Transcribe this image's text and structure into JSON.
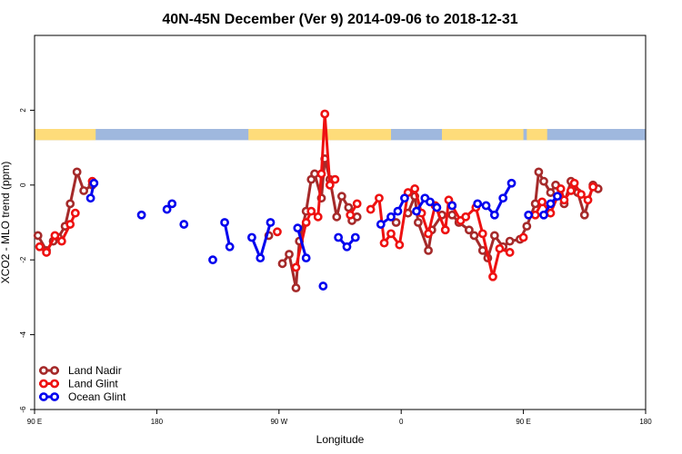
{
  "chart_data": {
    "type": "line",
    "title": "40N-45N December (Ver 9)   2014-09-06 to 2018-12-31",
    "xlabel": "Longitude",
    "ylabel": "XCO2 - MLO trend (ppm)",
    "xlim": [
      90,
      450
    ],
    "ylim": [
      -6,
      4
    ],
    "xticks": [
      {
        "value": 90,
        "label": "90 E"
      },
      {
        "value": 162,
        "label": "180"
      },
      {
        "value": 234,
        "label": "90 W"
      },
      {
        "value": 306,
        "label": "0"
      },
      {
        "value": 378,
        "label": "90 E"
      },
      {
        "value": 450,
        "label": "180"
      }
    ],
    "yticks": [
      {
        "value": -6,
        "label": "-6"
      },
      {
        "value": -4,
        "label": "-4"
      },
      {
        "value": -2,
        "label": "-2"
      },
      {
        "value": 0,
        "label": "0"
      },
      {
        "value": 2,
        "label": "2"
      }
    ],
    "land_ocean_bar": {
      "y_range": [
        1.2,
        1.5
      ],
      "ocean_color": "#9fb8de",
      "land_color": "#fedc7a",
      "land_segments": [
        [
          90,
          126
        ],
        [
          108,
          124
        ],
        [
          216,
          300
        ],
        [
          330,
          378
        ],
        [
          380,
          392
        ]
      ]
    },
    "series": [
      {
        "name": "Land Nadir",
        "color": "#a52a2a",
        "x": [
          92,
          97,
          101,
          104,
          108,
          111,
          115,
          119,
          124,
          228,
          236,
          240,
          244,
          246,
          250,
          253,
          255,
          259,
          261,
          264,
          268,
          271,
          275,
          277,
          280,
          303,
          310,
          314,
          316,
          322,
          324,
          330,
          336,
          340,
          346,
          349,
          354,
          357,
          361,
          366,
          370,
          376,
          380,
          385,
          387,
          390,
          394,
          397,
          402,
          406,
          410,
          414,
          419,
          422
        ],
        "y": [
          -1.35,
          -1.75,
          -1.5,
          -1.4,
          -1.1,
          -0.5,
          0.35,
          -0.15,
          0.0,
          -1.35,
          -2.1,
          -1.85,
          -2.75,
          -1.5,
          -0.7,
          0.15,
          0.3,
          -0.35,
          0.7,
          0.15,
          -0.85,
          -0.3,
          -0.6,
          -0.95,
          -0.85,
          -1.0,
          -0.75,
          -0.3,
          -1.0,
          -1.75,
          -1.2,
          -0.8,
          -0.8,
          -1.0,
          -1.2,
          -1.35,
          -1.75,
          -1.95,
          -1.35,
          -1.65,
          -1.5,
          -1.45,
          -1.1,
          -0.5,
          0.35,
          0.1,
          -0.2,
          0.0,
          -0.5,
          0.1,
          -0.2,
          -0.8,
          0.0,
          -0.1
        ]
      },
      {
        "name": "Land Glint",
        "color": "#ee1111",
        "x": [
          93,
          97,
          102,
          106,
          111,
          114,
          124,
          233,
          244,
          250,
          253,
          257,
          259,
          261,
          264,
          267,
          276,
          280,
          288,
          293,
          296,
          300,
          305,
          310,
          314,
          318,
          322,
          326,
          332,
          334,
          336,
          341,
          344,
          350,
          354,
          360,
          364,
          370,
          378,
          385,
          389,
          394,
          400,
          402,
          406,
          408,
          412,
          416,
          419
        ],
        "y": [
          -1.65,
          -1.8,
          -1.35,
          -1.5,
          -1.05,
          -0.75,
          0.1,
          -1.25,
          -2.2,
          -1.0,
          -0.7,
          -0.85,
          0.3,
          1.9,
          0.0,
          0.15,
          -0.8,
          -0.5,
          -0.65,
          -0.35,
          -1.55,
          -1.3,
          -1.6,
          -0.2,
          -0.1,
          -0.75,
          -1.3,
          -0.55,
          -1.2,
          -0.4,
          -0.55,
          -0.95,
          -0.85,
          -0.6,
          -1.3,
          -2.45,
          -1.7,
          -1.8,
          -1.4,
          -0.8,
          -0.45,
          -0.75,
          -0.1,
          -0.4,
          -0.15,
          0.05,
          -0.25,
          -0.4,
          -0.05
        ]
      },
      {
        "name": "Ocean Glint",
        "color": "#0000ee",
        "x": [
          123,
          125,
          153,
          168,
          171,
          178,
          195,
          202,
          205,
          218,
          223,
          229,
          245,
          250,
          260,
          269,
          274,
          279,
          294,
          300,
          304,
          308,
          315,
          320,
          323,
          327,
          336,
          351,
          356,
          361,
          366,
          371,
          381,
          390,
          394,
          398
        ],
        "y": [
          -0.35,
          0.05,
          -0.8,
          -0.65,
          -0.5,
          -1.05,
          -2.0,
          -1.0,
          -1.65,
          -1.4,
          -1.95,
          -1.0,
          -1.15,
          -1.95,
          -2.7,
          -1.4,
          -1.65,
          -1.4,
          -1.05,
          -0.85,
          -0.7,
          -0.35,
          -0.7,
          -0.35,
          -0.45,
          -0.6,
          -0.55,
          -0.5,
          -0.55,
          -0.8,
          -0.35,
          0.05,
          -0.8,
          -0.8,
          -0.5,
          -0.3
        ]
      }
    ],
    "legend": {
      "position": "bottom-left",
      "entries": [
        "Land Nadir",
        "Land Glint",
        "Ocean Glint"
      ]
    },
    "grid": false
  }
}
